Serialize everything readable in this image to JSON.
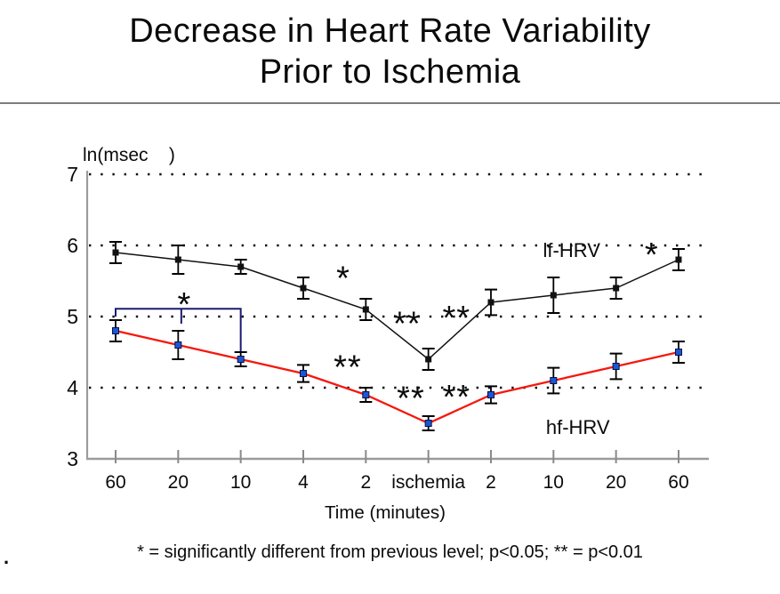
{
  "title": {
    "line1": "Decrease in Heart Rate Variability",
    "line2": "Prior to Ischemia"
  },
  "footnote": "* = significantly different from previous level; p<0.05; ** = p<0.01",
  "stray_mark": ".",
  "colors": {
    "lf_line": "#111111",
    "lf_marker": "#111111",
    "hf_line": "#f5180e",
    "hf_marker": "#1d56d2",
    "bracket": "#1b1b72",
    "axis": "#9b9b9b",
    "grid_dots": "#0d0d0d",
    "error_bar": "#000000"
  },
  "chart_data": {
    "type": "line",
    "title": "Decrease in Heart Rate Variability Prior to Ischemia",
    "y_axis_label": "ln(msec    )",
    "x_axis_label": "Time (minutes)",
    "categories": [
      "60",
      "20",
      "10",
      "4",
      "2",
      "ischemia",
      "2",
      "10",
      "20",
      "60"
    ],
    "y_ticks": [
      7,
      6,
      5,
      4,
      3
    ],
    "ylim": [
      3,
      7
    ],
    "grid_levels": [
      7,
      6,
      5,
      4
    ],
    "grid_style": "dotted",
    "legend_position": "inline-labels",
    "series": [
      {
        "name": "lf-HRV",
        "color": "#111111",
        "marker": "square",
        "marker_color": "#111111",
        "values": [
          5.9,
          5.8,
          5.7,
          5.4,
          5.1,
          4.4,
          5.2,
          5.3,
          5.4,
          5.8
        ],
        "errors": [
          0.15,
          0.2,
          0.1,
          0.15,
          0.15,
          0.15,
          0.18,
          0.25,
          0.15,
          0.15
        ],
        "label": {
          "text": "lf-HRV",
          "xi": 7.29,
          "value": 5.94
        }
      },
      {
        "name": "hf-HRV",
        "color": "#f5180e",
        "marker": "square",
        "marker_color": "#1d56d2",
        "values": [
          4.8,
          4.6,
          4.4,
          4.2,
          3.9,
          3.5,
          3.9,
          4.1,
          4.3,
          4.5
        ],
        "errors": [
          0.15,
          0.2,
          0.1,
          0.12,
          0.1,
          0.1,
          0.12,
          0.18,
          0.18,
          0.15
        ],
        "label": {
          "text": "hf-HRV",
          "xi": 7.39,
          "value": 3.45
        }
      }
    ],
    "annotations": [
      {
        "text": "*",
        "xi": 1.1,
        "value": 5.25
      },
      {
        "text": "*",
        "xi": 3.64,
        "value": 5.62
      },
      {
        "text": "**",
        "xi": 4.66,
        "value": 4.98
      },
      {
        "text": "**",
        "xi": 5.45,
        "value": 5.06
      },
      {
        "text": "**",
        "xi": 3.71,
        "value": 4.37
      },
      {
        "text": "**",
        "xi": 4.72,
        "value": 3.93
      },
      {
        "text": "**",
        "xi": 5.45,
        "value": 3.95
      },
      {
        "text": "*",
        "xi": 8.57,
        "value": 5.95
      }
    ],
    "bracket": {
      "x1_index": 0,
      "x2_index": 2,
      "value": 5.11,
      "left_tick_to": 5.0,
      "mid_index": 1.05,
      "mid_tick_to": 4.9,
      "right_drop_to": 4.5
    }
  }
}
